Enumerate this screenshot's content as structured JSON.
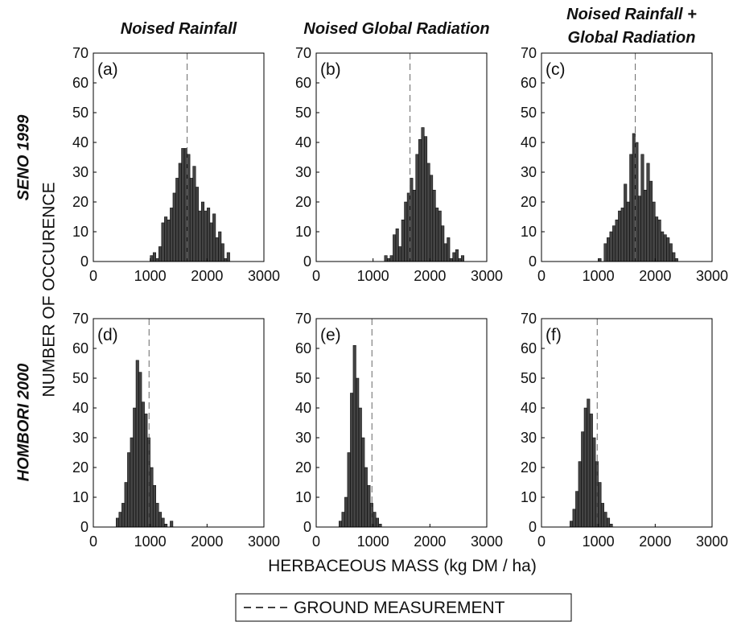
{
  "column_titles": [
    [
      "Noised Rainfall"
    ],
    [
      "Noised Global Radiation"
    ],
    [
      "Noised Rainfall +",
      "Global Radiation"
    ]
  ],
  "row_titles": [
    "SENO 1999",
    "HOMBORI 2000"
  ],
  "ylabel": "NUMBER OF OCCURENCE",
  "xlabel": "HERBACEOUS MASS (kg DM / ha)",
  "legend_label": "GROUND MEASUREMENT",
  "chart_data": [
    {
      "type": "histogram",
      "panel_label": "(a)",
      "color": "#444444",
      "bins": [
        1000,
        1050,
        1100,
        1150,
        1200,
        1250,
        1300,
        1350,
        1400,
        1450,
        1500,
        1550,
        1600,
        1650,
        1700,
        1750,
        1800,
        1850,
        1900,
        1950,
        2000,
        2050,
        2100,
        2150,
        2200,
        2250,
        2300,
        2350,
        2400
      ],
      "counts": [
        2,
        3,
        1,
        5,
        13,
        15,
        14,
        18,
        23,
        28,
        33,
        38,
        38,
        36,
        28,
        32,
        25,
        17,
        20,
        17,
        18,
        13,
        16,
        8,
        10,
        6,
        1,
        3
      ],
      "reference": 1650,
      "xlim": [
        0,
        3000
      ],
      "ylim": [
        0,
        70
      ],
      "xticks": [
        0,
        1000,
        2000,
        3000
      ],
      "yticks": [
        0,
        10,
        20,
        30,
        40,
        50,
        60,
        70
      ]
    },
    {
      "type": "histogram",
      "panel_label": "(b)",
      "color": "#444444",
      "bins": [
        1200,
        1250,
        1300,
        1350,
        1400,
        1450,
        1500,
        1550,
        1600,
        1650,
        1700,
        1750,
        1800,
        1850,
        1900,
        1950,
        2000,
        2050,
        2100,
        2150,
        2200,
        2250,
        2300,
        2350,
        2400,
        2450,
        2500,
        2550,
        2600
      ],
      "counts": [
        2,
        1,
        2,
        9,
        11,
        5,
        14,
        20,
        23,
        28,
        24,
        36,
        41,
        45,
        42,
        33,
        29,
        24,
        18,
        17,
        12,
        6,
        8,
        1,
        3,
        4,
        1,
        2
      ],
      "reference": 1650,
      "xlim": [
        0,
        3000
      ],
      "ylim": [
        0,
        70
      ],
      "xticks": [
        0,
        1000,
        2000,
        3000
      ],
      "yticks": [
        0,
        10,
        20,
        30,
        40,
        50,
        60,
        70
      ]
    },
    {
      "type": "histogram",
      "panel_label": "(c)",
      "color": "#444444",
      "bins": [
        1000,
        1050,
        1100,
        1150,
        1200,
        1250,
        1300,
        1350,
        1400,
        1450,
        1500,
        1550,
        1600,
        1650,
        1700,
        1750,
        1800,
        1850,
        1900,
        1950,
        2000,
        2050,
        2100,
        2150,
        2200,
        2250,
        2300,
        2350,
        2400
      ],
      "counts": [
        1,
        0,
        6,
        8,
        10,
        12,
        14,
        17,
        18,
        26,
        20,
        36,
        43,
        40,
        22,
        36,
        24,
        33,
        27,
        20,
        15,
        14,
        10,
        9,
        8,
        6,
        3,
        1
      ],
      "reference": 1650,
      "xlim": [
        0,
        3000
      ],
      "ylim": [
        0,
        70
      ],
      "xticks": [
        0,
        1000,
        2000,
        3000
      ],
      "yticks": [
        0,
        10,
        20,
        30,
        40,
        50,
        60,
        70
      ]
    },
    {
      "type": "histogram",
      "panel_label": "(d)",
      "color": "#444444",
      "bins": [
        400,
        450,
        500,
        550,
        600,
        650,
        700,
        750,
        800,
        850,
        900,
        950,
        1000,
        1050,
        1100,
        1150,
        1200,
        1250,
        1300,
        1350,
        1400
      ],
      "counts": [
        3,
        5,
        8,
        15,
        25,
        30,
        40,
        56,
        52,
        42,
        38,
        30,
        20,
        14,
        8,
        5,
        3,
        1,
        0,
        2
      ],
      "reference": 980,
      "xlim": [
        0,
        3000
      ],
      "ylim": [
        0,
        70
      ],
      "xticks": [
        0,
        1000,
        2000,
        3000
      ],
      "yticks": [
        0,
        10,
        20,
        30,
        40,
        50,
        60,
        70
      ]
    },
    {
      "type": "histogram",
      "panel_label": "(e)",
      "color": "#444444",
      "bins": [
        400,
        450,
        500,
        550,
        600,
        650,
        700,
        750,
        800,
        850,
        900,
        950,
        1000,
        1050,
        1100,
        1150
      ],
      "counts": [
        2,
        5,
        10,
        25,
        45,
        61,
        50,
        40,
        30,
        20,
        14,
        8,
        5,
        3,
        1
      ],
      "reference": 980,
      "xlim": [
        0,
        3000
      ],
      "ylim": [
        0,
        70
      ],
      "xticks": [
        0,
        1000,
        2000,
        3000
      ],
      "yticks": [
        0,
        10,
        20,
        30,
        40,
        50,
        60,
        70
      ]
    },
    {
      "type": "histogram",
      "panel_label": "(f)",
      "color": "#444444",
      "bins": [
        500,
        550,
        600,
        650,
        700,
        750,
        800,
        850,
        900,
        950,
        1000,
        1050,
        1100,
        1150,
        1200,
        1250
      ],
      "counts": [
        2,
        6,
        12,
        22,
        32,
        40,
        43,
        38,
        30,
        22,
        15,
        8,
        5,
        3,
        1
      ],
      "reference": 980,
      "xlim": [
        0,
        3000
      ],
      "ylim": [
        0,
        70
      ],
      "xticks": [
        0,
        1000,
        2000,
        3000
      ],
      "yticks": [
        0,
        10,
        20,
        30,
        40,
        50,
        60,
        70
      ]
    }
  ]
}
